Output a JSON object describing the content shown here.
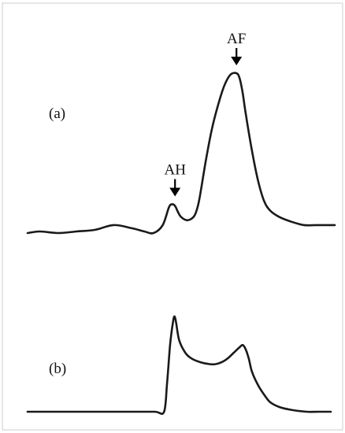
{
  "chart_data": [
    {
      "type": "line",
      "panel_label": "(a)",
      "title": "",
      "xlabel": "",
      "ylabel": "",
      "grid": false,
      "annotations": [
        {
          "text": "AH",
          "x": 0.48,
          "y": 0.18
        },
        {
          "text": "AF",
          "x": 0.68,
          "y": 1.0
        }
      ],
      "series": [
        {
          "x": [
            0.0,
            0.04,
            0.1,
            0.16,
            0.22,
            0.28,
            0.34,
            0.38,
            0.41,
            0.44,
            0.46,
            0.47,
            0.48,
            0.49,
            0.5,
            0.52,
            0.54,
            0.55,
            0.56,
            0.58,
            0.6,
            0.62,
            0.64,
            0.66,
            0.68,
            0.69,
            0.7,
            0.71,
            0.73,
            0.75,
            0.77,
            0.79,
            0.82,
            0.86,
            0.9,
            0.94,
            0.98,
            1.0
          ],
          "y": [
            0.0,
            0.01,
            0.0,
            0.01,
            0.02,
            0.05,
            0.03,
            0.01,
            0.0,
            0.05,
            0.16,
            0.18,
            0.17,
            0.13,
            0.1,
            0.08,
            0.1,
            0.14,
            0.22,
            0.45,
            0.65,
            0.8,
            0.92,
            0.99,
            1.0,
            0.97,
            0.88,
            0.75,
            0.52,
            0.33,
            0.2,
            0.14,
            0.1,
            0.07,
            0.05,
            0.05,
            0.05,
            0.05
          ]
        }
      ]
    },
    {
      "type": "line",
      "panel_label": "(b)",
      "title": "",
      "xlabel": "",
      "ylabel": "",
      "grid": false,
      "series": [
        {
          "x": [
            0.0,
            0.05,
            0.15,
            0.25,
            0.35,
            0.42,
            0.45,
            0.46,
            0.47,
            0.48,
            0.485,
            0.49,
            0.5,
            0.52,
            0.54,
            0.57,
            0.6,
            0.62,
            0.64,
            0.66,
            0.68,
            0.7,
            0.71,
            0.72,
            0.73,
            0.74,
            0.76,
            0.78,
            0.8,
            0.83,
            0.87,
            0.92,
            0.96,
            1.0
          ],
          "y": [
            0.0,
            0.0,
            0.0,
            0.0,
            0.0,
            0.0,
            0.0,
            0.3,
            0.7,
            0.95,
            1.0,
            0.93,
            0.75,
            0.62,
            0.56,
            0.52,
            0.5,
            0.5,
            0.52,
            0.56,
            0.62,
            0.68,
            0.7,
            0.65,
            0.55,
            0.42,
            0.28,
            0.18,
            0.1,
            0.05,
            0.02,
            0.0,
            0.0,
            0.0
          ]
        }
      ]
    }
  ]
}
